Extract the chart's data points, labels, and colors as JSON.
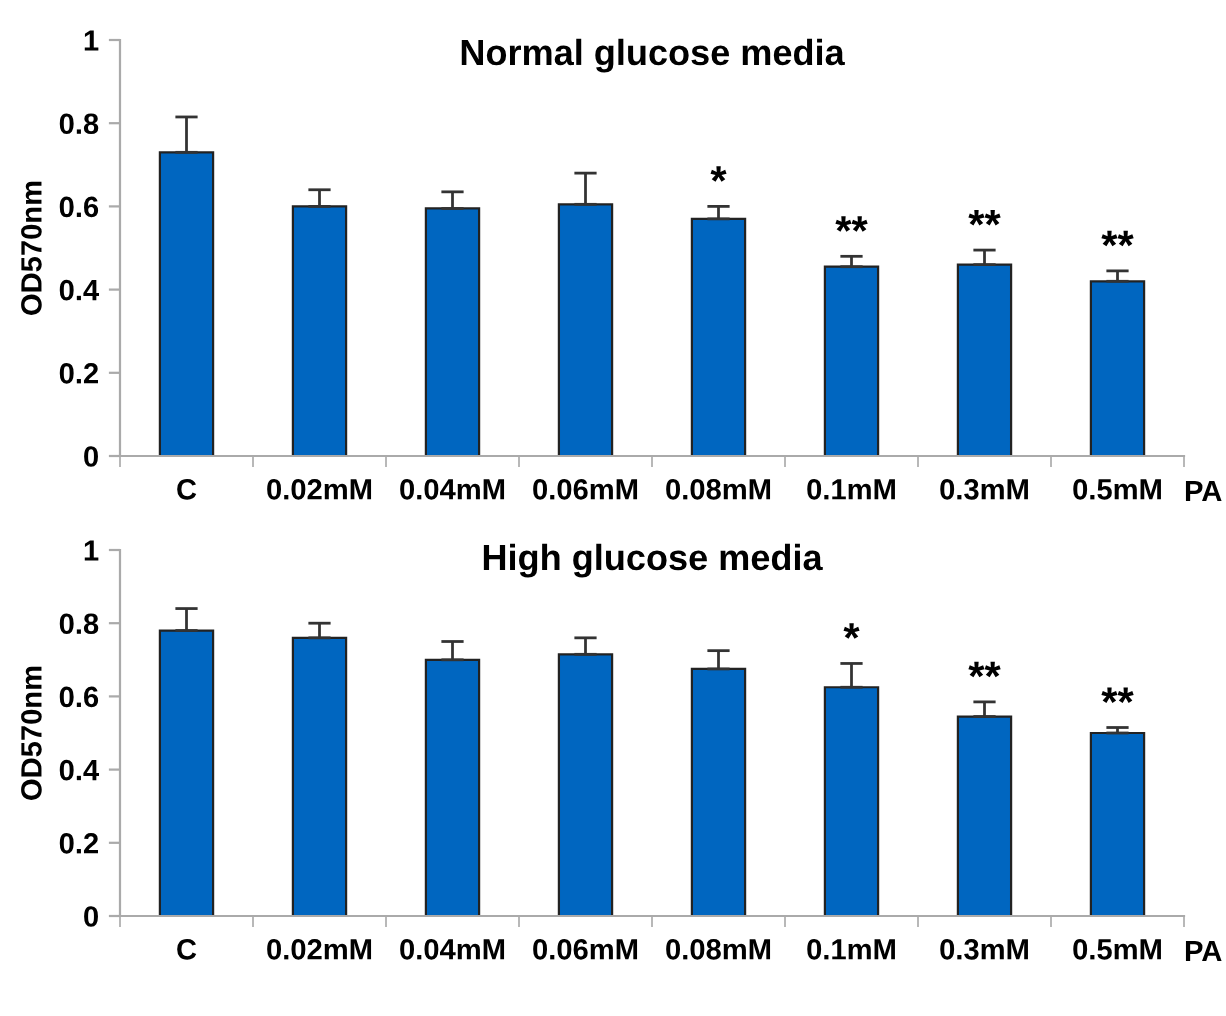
{
  "chart_data": [
    {
      "type": "bar",
      "title": "Normal glucose media",
      "ylabel": "OD570nm",
      "xlabel": "PA",
      "categories": [
        "C",
        "0.02mM",
        "0.04mM",
        "0.06mM",
        "0.08mM",
        "0.1mM",
        "0.3mM",
        "0.5mM"
      ],
      "series": [
        {
          "color": "#0066c0",
          "values": [
            0.73,
            0.6,
            0.595,
            0.605,
            0.57,
            0.455,
            0.46,
            0.42
          ],
          "errors": [
            [
              0.73,
              0.815
            ],
            [
              0.6,
              0.64
            ],
            [
              0.595,
              0.635
            ],
            [
              0.605,
              0.68
            ],
            [
              0.57,
              0.6
            ],
            [
              0.455,
              0.48
            ],
            [
              0.46,
              0.495
            ],
            [
              0.42,
              0.445
            ]
          ]
        }
      ],
      "ylim": [
        0,
        1
      ],
      "yticks": [
        0,
        0.2,
        0.4,
        0.6,
        0.8,
        1
      ],
      "grid": false,
      "legend": false,
      "annotations": [
        "*",
        "**",
        "**",
        "**"
      ]
    },
    {
      "type": "bar",
      "title": "High glucose media",
      "ylabel": "OD570nm",
      "xlabel": "PA",
      "categories": [
        "C",
        "0.02mM",
        "0.04mM",
        "0.06mM",
        "0.08mM",
        "0.1mM",
        "0.3mM",
        "0.5mM"
      ],
      "series": [
        {
          "color": "#0066c0",
          "values": [
            0.78,
            0.76,
            0.7,
            0.715,
            0.675,
            0.625,
            0.545,
            0.5
          ],
          "errors": [
            [
              0.78,
              0.84
            ],
            [
              0.76,
              0.8
            ],
            [
              0.7,
              0.75
            ],
            [
              0.715,
              0.76
            ],
            [
              0.675,
              0.725
            ],
            [
              0.625,
              0.69
            ],
            [
              0.545,
              0.585
            ],
            [
              0.5,
              0.515
            ]
          ]
        }
      ],
      "ylim": [
        0,
        1
      ],
      "yticks": [
        0,
        0.2,
        0.4,
        0.6,
        0.8,
        1
      ],
      "grid": false,
      "legend": false,
      "annotations": [
        "*",
        "**",
        "**"
      ]
    }
  ]
}
